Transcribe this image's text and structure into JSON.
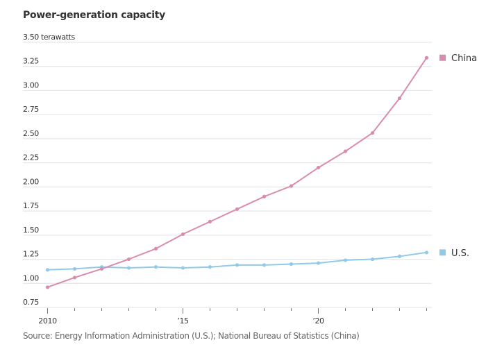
{
  "chart_data": {
    "type": "line",
    "title": "Power-generation capacity",
    "ylabel": "terawatts",
    "xlabel": "",
    "source": "Source: Energy Information Administration (U.S.); National Bureau of Statistics (China)",
    "x": [
      2010,
      2011,
      2012,
      2013,
      2014,
      2015,
      2016,
      2017,
      2018,
      2019,
      2020,
      2021,
      2022,
      2023,
      2024
    ],
    "xlim": [
      2010,
      2024
    ],
    "x_tick_labels": [
      {
        "x": 2010,
        "label": "2010"
      },
      {
        "x": 2015,
        "label": "’15"
      },
      {
        "x": 2020,
        "label": "’20"
      }
    ],
    "ylim": [
      0.75,
      3.5
    ],
    "y_ticks": [
      0.75,
      1.0,
      1.25,
      1.5,
      1.75,
      2.0,
      2.25,
      2.5,
      2.75,
      3.0,
      3.25,
      3.5
    ],
    "y_tick_labels": [
      "0.75",
      "1.00",
      "1.25",
      "1.50",
      "1.75",
      "2.00",
      "2.25",
      "2.50",
      "2.75",
      "3.00",
      "3.25",
      "3.50 terawatts"
    ],
    "grid": true,
    "legend_placement": "right, at line ends",
    "series": [
      {
        "name": "China",
        "color": "#d98cad",
        "values": [
          0.96,
          1.06,
          1.15,
          1.25,
          1.36,
          1.51,
          1.64,
          1.77,
          1.9,
          2.01,
          2.2,
          2.37,
          2.56,
          2.92,
          3.34
        ]
      },
      {
        "name": "U.S.",
        "color": "#92c9ea",
        "values": [
          1.14,
          1.15,
          1.17,
          1.16,
          1.17,
          1.16,
          1.17,
          1.19,
          1.19,
          1.2,
          1.21,
          1.24,
          1.25,
          1.28,
          1.32
        ]
      }
    ]
  }
}
